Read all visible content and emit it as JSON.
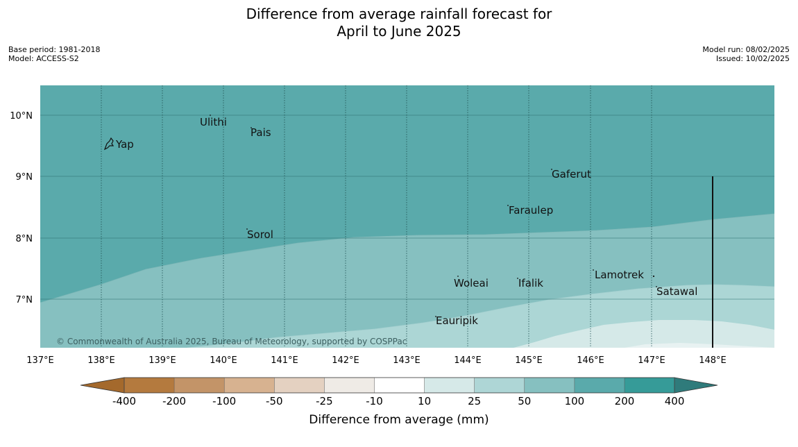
{
  "header": {
    "title_line1": "Difference from average rainfall forecast for",
    "title_line2": "April to June 2025",
    "base_period": "Base period: 1981-2018",
    "model": "Model: ACCESS-S2",
    "model_run": "Model run: 08/02/2025",
    "issued": "Issued: 10/02/2025"
  },
  "map": {
    "lon_ticks": [
      "137°E",
      "138°E",
      "139°E",
      "140°E",
      "141°E",
      "142°E",
      "143°E",
      "144°E",
      "145°E",
      "146°E",
      "147°E",
      "148°E"
    ],
    "lat_ticks": [
      "10°N",
      "9°N",
      "8°N",
      "7°N"
    ],
    "places": [
      "Ulithi",
      "Pais",
      "Yap",
      "Gaferut",
      "Faraulep",
      "Sorol",
      "Lamotrek",
      "Woleai",
      "Ifalik",
      "Satawal",
      "Eauripik"
    ],
    "copyright": "© Commonwealth of Australia 2025, Bureau of Meteorology, supported by COSPPac",
    "zone_colors": {
      "above_200": "#5aaaab",
      "100_to_200": "#86c0c0",
      "50_to_100": "#acd6d5",
      "25_to_50": "#d5e9e8"
    }
  },
  "colorbar": {
    "title": "Difference from average (mm)",
    "tick_labels": [
      "-400",
      "-200",
      "-100",
      "-50",
      "-25",
      "-10",
      "10",
      "25",
      "50",
      "100",
      "200",
      "400"
    ],
    "colors": [
      "#a4692c",
      "#b47a3e",
      "#c39468",
      "#d7b290",
      "#e4d1c1",
      "#efebe6",
      "#ffffff",
      "#d6e9e8",
      "#aed6d6",
      "#86c0c0",
      "#5aaaab",
      "#369b98",
      "#2f7b7b"
    ]
  }
}
